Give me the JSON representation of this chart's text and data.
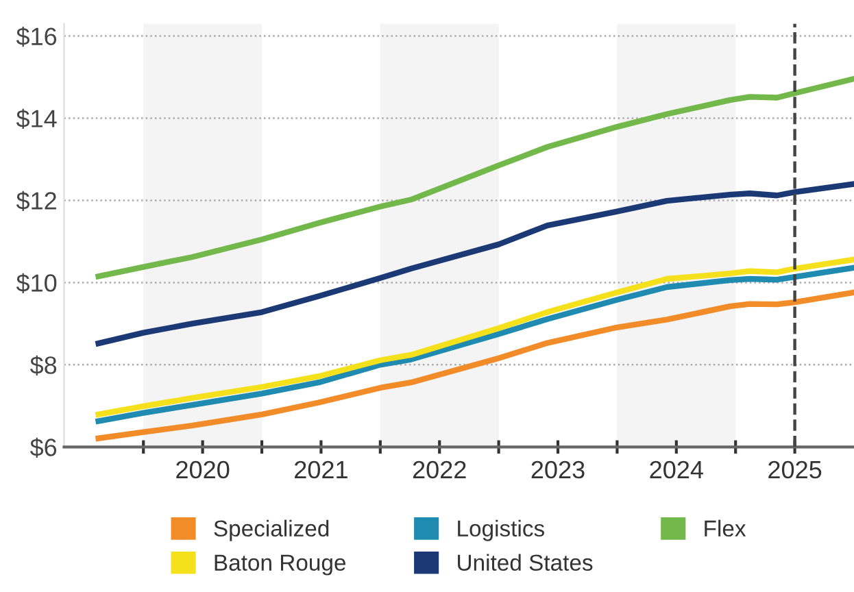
{
  "chart_data": {
    "type": "line",
    "x": [
      2019.62,
      2020.0,
      2020.41,
      2021.0,
      2021.48,
      2022.0,
      2022.26,
      2023.0,
      2023.41,
      2024.0,
      2024.42,
      2024.95,
      2025.12,
      2025.35,
      2025.5,
      2026.0
    ],
    "series": [
      {
        "name": "Specialized",
        "color": "#f28c28",
        "values": [
          6.21,
          6.36,
          6.52,
          6.79,
          7.08,
          7.44,
          7.57,
          8.16,
          8.53,
          8.91,
          9.1,
          9.42,
          9.48,
          9.47,
          9.52,
          9.76
        ]
      },
      {
        "name": "Logistics",
        "color": "#1f8bb0",
        "values": [
          6.63,
          6.83,
          7.02,
          7.3,
          7.57,
          8.0,
          8.13,
          8.75,
          9.11,
          9.58,
          9.89,
          10.06,
          10.09,
          10.07,
          10.14,
          10.36
        ]
      },
      {
        "name": "Flex",
        "color": "#72b84a",
        "values": [
          10.15,
          10.38,
          10.62,
          11.05,
          11.45,
          11.85,
          12.02,
          12.85,
          13.3,
          13.79,
          14.1,
          14.44,
          14.52,
          14.5,
          14.61,
          14.96
        ]
      },
      {
        "name": "Baton Rouge",
        "color": "#f5e11b",
        "values": [
          6.79,
          6.99,
          7.19,
          7.46,
          7.72,
          8.11,
          8.24,
          8.89,
          9.28,
          9.76,
          10.09,
          10.22,
          10.28,
          10.25,
          10.34,
          10.56
        ]
      },
      {
        "name": "United States",
        "color": "#1b3a75",
        "values": [
          8.52,
          8.78,
          9.0,
          9.28,
          9.67,
          10.11,
          10.34,
          10.93,
          11.39,
          11.73,
          11.99,
          12.14,
          12.17,
          12.12,
          12.2,
          12.4
        ]
      }
    ],
    "xlim": [
      2019.33,
      2026.0
    ],
    "xticks": [
      {
        "value": 2020,
        "label": null
      },
      {
        "value": 2020.5,
        "label": "2020"
      },
      {
        "value": 2021,
        "label": null
      },
      {
        "value": 2021.5,
        "label": "2021"
      },
      {
        "value": 2022,
        "label": null
      },
      {
        "value": 2022.5,
        "label": "2022"
      },
      {
        "value": 2023,
        "label": null
      },
      {
        "value": 2023.5,
        "label": "2023"
      },
      {
        "value": 2024,
        "label": null
      },
      {
        "value": 2024.5,
        "label": "2024"
      },
      {
        "value": 2025,
        "label": null
      },
      {
        "value": 2025.5,
        "label": "2025"
      }
    ],
    "ylim": [
      6,
      16.3
    ],
    "yticks": [
      {
        "value": 6,
        "label": "$6"
      },
      {
        "value": 8,
        "label": "$8"
      },
      {
        "value": 10,
        "label": "$10"
      },
      {
        "value": 12,
        "label": "$12"
      },
      {
        "value": 14,
        "label": "$14"
      },
      {
        "value": 16,
        "label": "$16"
      }
    ],
    "bands": [
      {
        "axis": "x",
        "from": 2020,
        "to": 2021,
        "color": "#f4f4f4"
      },
      {
        "axis": "x",
        "from": 2022,
        "to": 2023,
        "color": "#f4f4f4"
      },
      {
        "axis": "x",
        "from": 2024,
        "to": 2025,
        "color": "#f4f4f4"
      }
    ],
    "ref_lines": [
      {
        "axis": "x",
        "value": 2025.5,
        "color": "#444444",
        "line_style": "dashed"
      }
    ],
    "grid": "y",
    "legend": "bottom",
    "marker": "none",
    "line_style": "solid"
  }
}
